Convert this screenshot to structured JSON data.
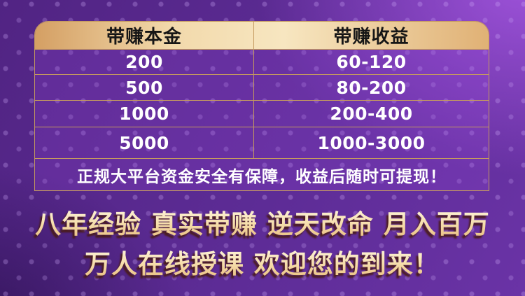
{
  "theme": {
    "page_bg_dark": "#512483",
    "page_bg_bright": "#8d45c6",
    "cell_bg": "#7433ae",
    "gold_border": "#c49a5f",
    "header_gold_light": "#f7e6c0",
    "header_gold_dark": "#d49f63",
    "slogan_gold_light": "#fdf3d7",
    "slogan_gold_dark": "#e8bb7c",
    "slogan_shadow": "#481a0e",
    "header_text": "#161616",
    "cell_text": "#ffffff"
  },
  "table": {
    "headers": [
      "带赚本金",
      "带赚收益"
    ],
    "rows": [
      [
        "200",
        "60-120"
      ],
      [
        "500",
        "80-200"
      ],
      [
        "1000",
        "200-400"
      ],
      [
        "5000",
        "1000-3000"
      ]
    ],
    "notice": "正规大平台资金安全有保障，收益后随时可提现！"
  },
  "slogan": {
    "line1": "八年经验 真实带赚 逆天改命 月入百万",
    "line2": "万人在线授课 欢迎您的到来！"
  }
}
